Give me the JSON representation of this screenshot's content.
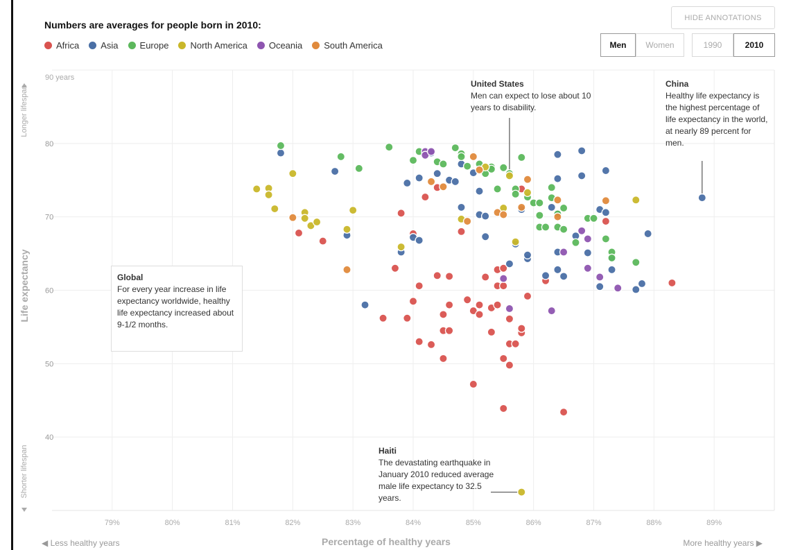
{
  "header": {
    "title": "Numbers are averages for people born in 2010:"
  },
  "legend": [
    {
      "name": "Africa",
      "color": "#d9534f"
    },
    {
      "name": "Asia",
      "color": "#4a6fa5"
    },
    {
      "name": "Europe",
      "color": "#5cb85c"
    },
    {
      "name": "North America",
      "color": "#c9b72a"
    },
    {
      "name": "Oceania",
      "color": "#8e55b0"
    },
    {
      "name": "South America",
      "color": "#e08a3c"
    }
  ],
  "controls": {
    "hide_annotations": "HIDE ANNOTATIONS",
    "men": "Men",
    "women": "Women",
    "year_1990": "1990",
    "year_2010": "2010"
  },
  "axes": {
    "y_label": "Life expectancy",
    "y_top_hint": "Longer lifespan",
    "y_bottom_hint": "Shorter lifespan",
    "x_label": "Percentage of healthy years",
    "x_left_hint": "◀ Less healthy years",
    "x_right_hint": "More healthy years ▶",
    "y_top_tick": "90 years"
  },
  "annotations": {
    "united_states": {
      "title": "United States",
      "text": "Men can expect to lose about 10 years to disability."
    },
    "china": {
      "title": "China",
      "text": "Healthy life expectancy is the highest percentage of life expectancy in the world, at nearly 89 percent for men."
    },
    "global": {
      "title": "Global",
      "text": "For every year increase in life expectancy worldwide, healthy life expectancy increased about 9-1/2 months."
    },
    "haiti": {
      "title": "Haiti",
      "text": "The devastating earthquake in January 2010 reduced average male life expectancy to 32.5 years."
    }
  },
  "chart_data": {
    "type": "scatter",
    "xlabel": "Percentage of healthy years",
    "ylabel": "Life expectancy",
    "xlim": [
      78,
      90
    ],
    "ylim": [
      30,
      90
    ],
    "x_ticks": [
      79,
      80,
      81,
      82,
      83,
      84,
      85,
      86,
      87,
      88,
      89
    ],
    "x_tick_labels": [
      "79%",
      "80%",
      "81%",
      "82%",
      "83%",
      "84%",
      "85%",
      "86%",
      "87%",
      "88%",
      "89%"
    ],
    "y_ticks": [
      40,
      50,
      60,
      70,
      80
    ],
    "y_tick_labels": [
      "40",
      "50",
      "60",
      "70",
      "80"
    ],
    "grid": true,
    "series": [
      {
        "name": "Africa",
        "color": "#d9534f",
        "points": [
          [
            82.1,
            67.8
          ],
          [
            82.5,
            66.7
          ],
          [
            83.5,
            56.2
          ],
          [
            83.7,
            63
          ],
          [
            83.8,
            70.5
          ],
          [
            83.9,
            56.2
          ],
          [
            84,
            58.5
          ],
          [
            84,
            67.7
          ],
          [
            84.1,
            53
          ],
          [
            84.1,
            60.6
          ],
          [
            84.2,
            72.7
          ],
          [
            84.3,
            52.6
          ],
          [
            84.4,
            62
          ],
          [
            84.4,
            74
          ],
          [
            84.5,
            50.7
          ],
          [
            84.5,
            54.5
          ],
          [
            84.5,
            56.7
          ],
          [
            84.6,
            54.5
          ],
          [
            84.6,
            58
          ],
          [
            84.6,
            61.9
          ],
          [
            84.8,
            68
          ],
          [
            84.9,
            58.7
          ],
          [
            85,
            47.2
          ],
          [
            85,
            57.2
          ],
          [
            85.1,
            56.7
          ],
          [
            85.1,
            58
          ],
          [
            85.2,
            61.8
          ],
          [
            85.3,
            54.3
          ],
          [
            85.3,
            57.6
          ],
          [
            85.4,
            58
          ],
          [
            85.4,
            60.6
          ],
          [
            85.4,
            62.8
          ],
          [
            85.5,
            50.7
          ],
          [
            85.5,
            60.6
          ],
          [
            85.5,
            63
          ],
          [
            85.5,
            43.9
          ],
          [
            85.6,
            49.8
          ],
          [
            85.6,
            52.7
          ],
          [
            85.6,
            56.1
          ],
          [
            85.7,
            52.7
          ],
          [
            85.8,
            54.2
          ],
          [
            85.8,
            54.8
          ],
          [
            85.8,
            73.8
          ],
          [
            85.9,
            59.2
          ],
          [
            86.2,
            61.3
          ],
          [
            86.5,
            43.4
          ],
          [
            87.2,
            69.4
          ],
          [
            88.3,
            61
          ]
        ]
      },
      {
        "name": "Asia",
        "color": "#4a6fa5",
        "points": [
          [
            81.8,
            78.7
          ],
          [
            82.9,
            67.5
          ],
          [
            82.7,
            76.2
          ],
          [
            83.2,
            58
          ],
          [
            83.8,
            65.2
          ],
          [
            83.9,
            74.6
          ],
          [
            84,
            67.2
          ],
          [
            84.1,
            75.3
          ],
          [
            84.1,
            66.8
          ],
          [
            84.3,
            78.7
          ],
          [
            84.4,
            75.9
          ],
          [
            84.6,
            75
          ],
          [
            84.7,
            74.8
          ],
          [
            84.8,
            77.2
          ],
          [
            84.8,
            71.3
          ],
          [
            85,
            76
          ],
          [
            85.1,
            73.5
          ],
          [
            85.1,
            70.3
          ],
          [
            85.2,
            70.1
          ],
          [
            85.2,
            67.3
          ],
          [
            85.6,
            63.6
          ],
          [
            85.7,
            66.3
          ],
          [
            85.8,
            71
          ],
          [
            85.9,
            64.3
          ],
          [
            85.9,
            64.8
          ],
          [
            86.2,
            62
          ],
          [
            86.3,
            71.3
          ],
          [
            86.4,
            78.5
          ],
          [
            86.4,
            75.2
          ],
          [
            86.4,
            70.5
          ],
          [
            86.4,
            65.2
          ],
          [
            86.4,
            62.8
          ],
          [
            86.5,
            61.9
          ],
          [
            86.7,
            67.4
          ],
          [
            86.8,
            79
          ],
          [
            86.8,
            75.6
          ],
          [
            86.9,
            65.1
          ],
          [
            87.1,
            71
          ],
          [
            87.1,
            60.5
          ],
          [
            87.2,
            76.3
          ],
          [
            87.2,
            70.6
          ],
          [
            87.3,
            62.8
          ],
          [
            87.3,
            64.3
          ],
          [
            87.7,
            60.1
          ],
          [
            87.8,
            60.9
          ],
          [
            87.9,
            67.7
          ],
          [
            88.8,
            72.6
          ]
        ]
      },
      {
        "name": "Europe",
        "color": "#5cb85c",
        "points": [
          [
            81.8,
            79.7
          ],
          [
            82.8,
            78.2
          ],
          [
            83.1,
            76.6
          ],
          [
            83.6,
            79.5
          ],
          [
            84,
            77.7
          ],
          [
            84.1,
            78.9
          ],
          [
            84.4,
            77.5
          ],
          [
            84.5,
            77.2
          ],
          [
            84.7,
            79.4
          ],
          [
            84.8,
            78.6
          ],
          [
            84.8,
            78.2
          ],
          [
            84.9,
            76.9
          ],
          [
            85.1,
            77.2
          ],
          [
            85.2,
            75.9
          ],
          [
            85.3,
            76.8
          ],
          [
            85.3,
            76.5
          ],
          [
            85.4,
            73.8
          ],
          [
            85.5,
            76.7
          ],
          [
            85.6,
            75.9
          ],
          [
            85.7,
            73.8
          ],
          [
            85.7,
            73.1
          ],
          [
            85.8,
            78.1
          ],
          [
            85.9,
            72.7
          ],
          [
            86,
            71.9
          ],
          [
            86.1,
            71.9
          ],
          [
            86.1,
            70.2
          ],
          [
            86.1,
            68.6
          ],
          [
            86.2,
            68.6
          ],
          [
            86.3,
            74
          ],
          [
            86.3,
            72.6
          ],
          [
            86.4,
            70.4
          ],
          [
            86.4,
            68.6
          ],
          [
            86.5,
            71.2
          ],
          [
            86.5,
            68.3
          ],
          [
            86.7,
            66.5
          ],
          [
            86.9,
            69.8
          ],
          [
            87,
            69.8
          ],
          [
            87.2,
            67
          ],
          [
            87.3,
            65.2
          ],
          [
            87.3,
            64.4
          ],
          [
            87.7,
            63.8
          ]
        ]
      },
      {
        "name": "North America",
        "color": "#c9b72a",
        "points": [
          [
            81.4,
            73.8
          ],
          [
            81.6,
            73.9
          ],
          [
            81.6,
            73
          ],
          [
            81.7,
            71.1
          ],
          [
            82,
            75.9
          ],
          [
            82.2,
            70.6
          ],
          [
            82.2,
            69.8
          ],
          [
            82.3,
            68.8
          ],
          [
            82.4,
            69.3
          ],
          [
            82.9,
            68.3
          ],
          [
            83,
            70.9
          ],
          [
            83.8,
            65.9
          ],
          [
            84.8,
            69.7
          ],
          [
            85.2,
            76.8
          ],
          [
            85.5,
            71.2
          ],
          [
            85.6,
            75.6
          ],
          [
            85.7,
            66.6
          ],
          [
            85.9,
            73.3
          ],
          [
            87.7,
            72.3
          ],
          [
            85.8,
            32.5
          ]
        ]
      },
      {
        "name": "Oceania",
        "color": "#8e55b0",
        "points": [
          [
            84.2,
            78.9
          ],
          [
            84.2,
            78.4
          ],
          [
            84.3,
            78.9
          ],
          [
            85.5,
            61.6
          ],
          [
            85.6,
            57.5
          ],
          [
            86.3,
            57.2
          ],
          [
            86.5,
            65.2
          ],
          [
            86.8,
            68.1
          ],
          [
            86.9,
            67
          ],
          [
            86.9,
            63
          ],
          [
            87.1,
            61.8
          ],
          [
            87.4,
            60.3
          ]
        ]
      },
      {
        "name": "South America",
        "color": "#e08a3c",
        "points": [
          [
            82,
            69.9
          ],
          [
            82.9,
            62.8
          ],
          [
            84.3,
            74.8
          ],
          [
            84.5,
            74.1
          ],
          [
            84.9,
            69.4
          ],
          [
            85,
            78.2
          ],
          [
            85.1,
            76.4
          ],
          [
            85.4,
            70.6
          ],
          [
            85.5,
            70.3
          ],
          [
            85.8,
            71.3
          ],
          [
            85.9,
            75.1
          ],
          [
            86.4,
            72.3
          ],
          [
            86.4,
            70
          ],
          [
            87.2,
            72.2
          ]
        ]
      }
    ]
  }
}
